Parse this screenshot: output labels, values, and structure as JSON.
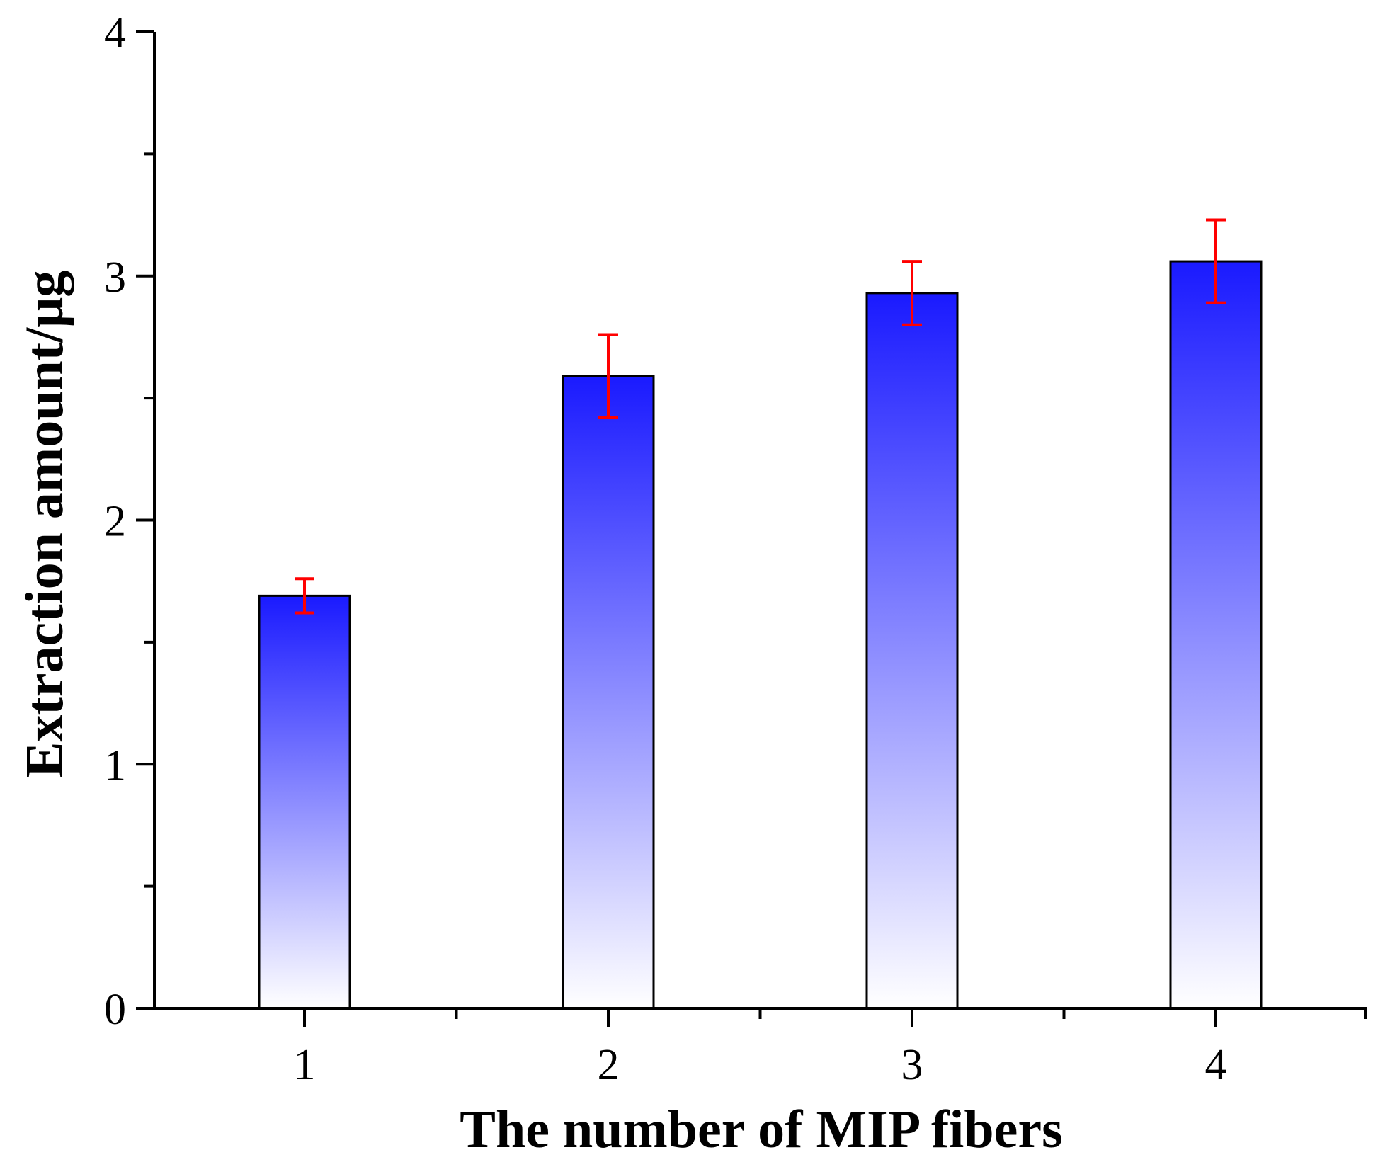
{
  "chart_data": {
    "type": "bar",
    "title": "",
    "xlabel": "The number of MIP fibers",
    "ylabel": "Extraction amount/μg",
    "categories": [
      "1",
      "2",
      "3",
      "4"
    ],
    "values": [
      1.69,
      2.59,
      2.93,
      3.06
    ],
    "errors": [
      0.07,
      0.17,
      0.13,
      0.17
    ],
    "ylim": [
      0,
      4
    ],
    "yticks": [
      "0",
      "1",
      "2",
      "3",
      "4"
    ],
    "grid": false,
    "colors": {
      "bar_top": "#1a1aff",
      "bar_bottom": "#ffffff",
      "error_bar": "#ff0000",
      "axis": "#000000"
    }
  }
}
